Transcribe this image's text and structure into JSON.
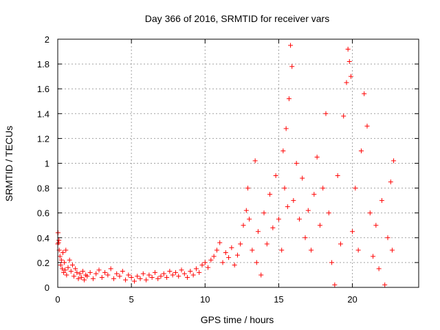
{
  "chart_data": {
    "type": "scatter",
    "title": "Day 366 of 2016, SRMTID for receiver vars",
    "xlabel": "GPS time / hours",
    "ylabel": "SRMTID / TECUs",
    "xlim": [
      0,
      24.5
    ],
    "ylim": [
      0,
      2
    ],
    "xticks": [
      0,
      5,
      10,
      15,
      20
    ],
    "xtick_labels": [
      "0",
      "5",
      "10",
      "15",
      "20"
    ],
    "yticks": [
      0,
      0.2,
      0.4,
      0.6,
      0.8,
      1,
      1.2,
      1.4,
      1.6,
      1.8,
      2
    ],
    "ytick_labels": [
      "0",
      "0.2",
      "0.4",
      "0.6",
      "0.8",
      "1",
      "1.2",
      "1.4",
      "1.6",
      "1.8",
      "2"
    ],
    "grid": true,
    "marker": "+",
    "color": "#ff0000",
    "series": [
      {
        "name": "receiver vars",
        "points": [
          [
            0.0,
            0.35
          ],
          [
            0.02,
            0.44
          ],
          [
            0.05,
            0.36
          ],
          [
            0.08,
            0.38
          ],
          [
            0.1,
            0.3
          ],
          [
            0.15,
            0.25
          ],
          [
            0.2,
            0.18
          ],
          [
            0.25,
            0.22
          ],
          [
            0.3,
            0.15
          ],
          [
            0.35,
            0.28
          ],
          [
            0.4,
            0.12
          ],
          [
            0.45,
            0.2
          ],
          [
            0.5,
            0.14
          ],
          [
            0.55,
            0.3
          ],
          [
            0.6,
            0.1
          ],
          [
            0.7,
            0.16
          ],
          [
            0.8,
            0.22
          ],
          [
            0.9,
            0.13
          ],
          [
            1.0,
            0.18
          ],
          [
            1.1,
            0.09
          ],
          [
            1.2,
            0.15
          ],
          [
            1.3,
            0.12
          ],
          [
            1.4,
            0.07
          ],
          [
            1.5,
            0.11
          ],
          [
            1.6,
            0.08
          ],
          [
            1.7,
            0.13
          ],
          [
            1.8,
            0.06
          ],
          [
            1.9,
            0.1
          ],
          [
            2.0,
            0.09
          ],
          [
            2.2,
            0.12
          ],
          [
            2.4,
            0.07
          ],
          [
            2.6,
            0.11
          ],
          [
            2.8,
            0.14
          ],
          [
            3.0,
            0.08
          ],
          [
            3.2,
            0.12
          ],
          [
            3.4,
            0.1
          ],
          [
            3.6,
            0.15
          ],
          [
            3.8,
            0.07
          ],
          [
            4.0,
            0.11
          ],
          [
            4.2,
            0.09
          ],
          [
            4.4,
            0.13
          ],
          [
            4.6,
            0.06
          ],
          [
            4.8,
            0.1
          ],
          [
            5.0,
            0.08
          ],
          [
            5.2,
            0.05
          ],
          [
            5.4,
            0.09
          ],
          [
            5.6,
            0.07
          ],
          [
            5.8,
            0.11
          ],
          [
            6.0,
            0.06
          ],
          [
            6.2,
            0.1
          ],
          [
            6.4,
            0.08
          ],
          [
            6.6,
            0.12
          ],
          [
            6.8,
            0.07
          ],
          [
            7.0,
            0.09
          ],
          [
            7.2,
            0.11
          ],
          [
            7.4,
            0.08
          ],
          [
            7.6,
            0.13
          ],
          [
            7.8,
            0.1
          ],
          [
            8.0,
            0.12
          ],
          [
            8.2,
            0.09
          ],
          [
            8.4,
            0.14
          ],
          [
            8.6,
            0.11
          ],
          [
            8.8,
            0.08
          ],
          [
            9.0,
            0.13
          ],
          [
            9.2,
            0.1
          ],
          [
            9.4,
            0.15
          ],
          [
            9.6,
            0.12
          ],
          [
            9.8,
            0.18
          ],
          [
            10.0,
            0.2
          ],
          [
            10.2,
            0.16
          ],
          [
            10.4,
            0.22
          ],
          [
            10.6,
            0.25
          ],
          [
            10.8,
            0.3
          ],
          [
            11.0,
            0.36
          ],
          [
            11.2,
            0.2
          ],
          [
            11.4,
            0.28
          ],
          [
            11.6,
            0.24
          ],
          [
            11.8,
            0.32
          ],
          [
            12.0,
            0.18
          ],
          [
            12.2,
            0.26
          ],
          [
            12.4,
            0.35
          ],
          [
            12.6,
            0.5
          ],
          [
            12.8,
            0.62
          ],
          [
            12.9,
            0.8
          ],
          [
            13.0,
            0.55
          ],
          [
            13.2,
            0.3
          ],
          [
            13.4,
            1.02
          ],
          [
            13.5,
            0.2
          ],
          [
            13.6,
            0.45
          ],
          [
            13.8,
            0.1
          ],
          [
            14.0,
            0.6
          ],
          [
            14.2,
            0.35
          ],
          [
            14.4,
            0.75
          ],
          [
            14.6,
            0.48
          ],
          [
            14.8,
            0.9
          ],
          [
            15.0,
            0.55
          ],
          [
            15.2,
            0.3
          ],
          [
            15.3,
            1.1
          ],
          [
            15.4,
            0.8
          ],
          [
            15.5,
            1.28
          ],
          [
            15.6,
            0.65
          ],
          [
            15.7,
            1.52
          ],
          [
            15.8,
            1.95
          ],
          [
            15.9,
            1.78
          ],
          [
            16.0,
            0.7
          ],
          [
            16.2,
            1.0
          ],
          [
            16.4,
            0.55
          ],
          [
            16.6,
            0.88
          ],
          [
            16.8,
            0.4
          ],
          [
            17.0,
            0.62
          ],
          [
            17.2,
            0.3
          ],
          [
            17.4,
            0.75
          ],
          [
            17.6,
            1.05
          ],
          [
            17.8,
            0.5
          ],
          [
            18.0,
            0.8
          ],
          [
            18.2,
            1.4
          ],
          [
            18.4,
            0.6
          ],
          [
            18.6,
            0.2
          ],
          [
            18.8,
            0.02
          ],
          [
            19.0,
            0.9
          ],
          [
            19.2,
            0.35
          ],
          [
            19.4,
            1.38
          ],
          [
            19.6,
            1.65
          ],
          [
            19.7,
            1.92
          ],
          [
            19.8,
            1.82
          ],
          [
            19.9,
            1.7
          ],
          [
            20.0,
            0.45
          ],
          [
            20.2,
            0.8
          ],
          [
            20.4,
            0.3
          ],
          [
            20.6,
            1.1
          ],
          [
            20.8,
            1.56
          ],
          [
            21.0,
            1.3
          ],
          [
            21.2,
            0.6
          ],
          [
            21.4,
            0.25
          ],
          [
            21.6,
            0.5
          ],
          [
            21.8,
            0.15
          ],
          [
            22.0,
            0.7
          ],
          [
            22.2,
            0.02
          ],
          [
            22.4,
            0.4
          ],
          [
            22.6,
            0.85
          ],
          [
            22.7,
            0.3
          ],
          [
            22.8,
            1.02
          ]
        ]
      }
    ]
  }
}
